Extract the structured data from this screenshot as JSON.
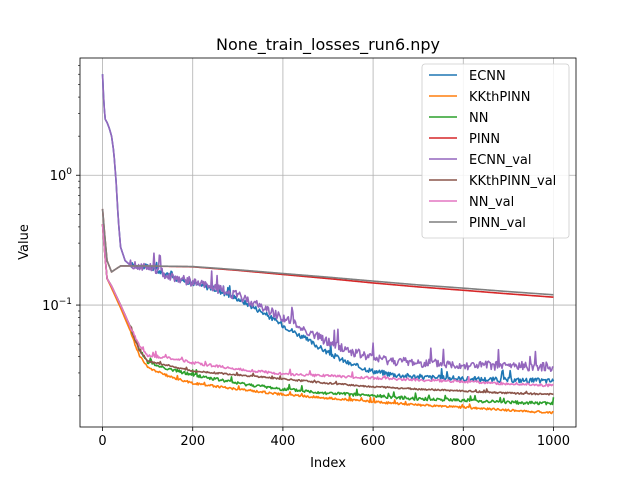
{
  "chart_data": {
    "type": "line",
    "title": "None_train_losses_run6.npy",
    "xlabel": "Index",
    "ylabel": "Value",
    "xlim": [
      -50,
      1050
    ],
    "ylim": [
      0.0115,
      8.0
    ],
    "yscale": "log",
    "grid": true,
    "legend_position": "top-right",
    "x_ticks": [
      0,
      200,
      400,
      600,
      800,
      1000
    ],
    "y_ticks": [
      {
        "value": 0.1,
        "label": "10",
        "exp": "−1"
      },
      {
        "value": 1.0,
        "label": "10",
        "exp": "0"
      }
    ],
    "series": [
      {
        "name": "ECNN",
        "color": "#1f77b4",
        "noise": 0.02,
        "points": [
          [
            0,
            6.0
          ],
          [
            3,
            3.5
          ],
          [
            6,
            2.7
          ],
          [
            10,
            2.55
          ],
          [
            15,
            2.3
          ],
          [
            20,
            2.0
          ],
          [
            25,
            1.5
          ],
          [
            30,
            0.9
          ],
          [
            35,
            0.45
          ],
          [
            40,
            0.28
          ],
          [
            50,
            0.22
          ],
          [
            60,
            0.205
          ],
          [
            80,
            0.2
          ],
          [
            100,
            0.197
          ],
          [
            120,
            0.185
          ],
          [
            150,
            0.165
          ],
          [
            200,
            0.148
          ],
          [
            250,
            0.132
          ],
          [
            300,
            0.112
          ],
          [
            350,
            0.09
          ],
          [
            400,
            0.07
          ],
          [
            450,
            0.055
          ],
          [
            500,
            0.043
          ],
          [
            550,
            0.035
          ],
          [
            600,
            0.031
          ],
          [
            650,
            0.029
          ],
          [
            700,
            0.028
          ],
          [
            800,
            0.027
          ],
          [
            900,
            0.0265
          ],
          [
            1000,
            0.026
          ]
        ]
      },
      {
        "name": "KKthPINN",
        "color": "#ff7f0e",
        "noise": 0.008,
        "points": [
          [
            0,
            0.42
          ],
          [
            5,
            0.25
          ],
          [
            10,
            0.16
          ],
          [
            20,
            0.135
          ],
          [
            40,
            0.095
          ],
          [
            60,
            0.065
          ],
          [
            80,
            0.042
          ],
          [
            100,
            0.033
          ],
          [
            150,
            0.028
          ],
          [
            200,
            0.025
          ],
          [
            300,
            0.0225
          ],
          [
            400,
            0.0205
          ],
          [
            500,
            0.0192
          ],
          [
            600,
            0.018
          ],
          [
            700,
            0.017
          ],
          [
            800,
            0.0163
          ],
          [
            900,
            0.0155
          ],
          [
            1000,
            0.0148
          ]
        ]
      },
      {
        "name": "NN",
        "color": "#2ca02c",
        "noise": 0.012,
        "points": [
          [
            0,
            0.42
          ],
          [
            5,
            0.25
          ],
          [
            10,
            0.16
          ],
          [
            20,
            0.14
          ],
          [
            40,
            0.1
          ],
          [
            60,
            0.07
          ],
          [
            80,
            0.047
          ],
          [
            100,
            0.036
          ],
          [
            150,
            0.032
          ],
          [
            200,
            0.029
          ],
          [
            300,
            0.025
          ],
          [
            400,
            0.0225
          ],
          [
            500,
            0.021
          ],
          [
            600,
            0.02
          ],
          [
            700,
            0.019
          ],
          [
            800,
            0.0185
          ],
          [
            900,
            0.0178
          ],
          [
            1000,
            0.0175
          ]
        ]
      },
      {
        "name": "PINN",
        "color": "#d62728",
        "noise": 0.0,
        "points": [
          [
            0,
            0.55
          ],
          [
            5,
            0.34
          ],
          [
            10,
            0.22
          ],
          [
            20,
            0.18
          ],
          [
            30,
            0.19
          ],
          [
            40,
            0.2
          ],
          [
            100,
            0.2
          ],
          [
            200,
            0.197
          ],
          [
            300,
            0.185
          ],
          [
            400,
            0.172
          ],
          [
            500,
            0.16
          ],
          [
            600,
            0.148
          ],
          [
            700,
            0.138
          ],
          [
            800,
            0.13
          ],
          [
            900,
            0.122
          ],
          [
            1000,
            0.115
          ]
        ]
      },
      {
        "name": "ECNN_val",
        "color": "#9467bd",
        "noise": 0.035,
        "points": [
          [
            0,
            6.0
          ],
          [
            3,
            3.5
          ],
          [
            6,
            2.7
          ],
          [
            10,
            2.55
          ],
          [
            15,
            2.3
          ],
          [
            20,
            2.0
          ],
          [
            25,
            1.5
          ],
          [
            30,
            0.9
          ],
          [
            35,
            0.45
          ],
          [
            40,
            0.28
          ],
          [
            50,
            0.22
          ],
          [
            60,
            0.205
          ],
          [
            80,
            0.2
          ],
          [
            100,
            0.197
          ],
          [
            120,
            0.185
          ],
          [
            150,
            0.167
          ],
          [
            200,
            0.15
          ],
          [
            250,
            0.135
          ],
          [
            300,
            0.118
          ],
          [
            350,
            0.098
          ],
          [
            400,
            0.08
          ],
          [
            450,
            0.064
          ],
          [
            500,
            0.052
          ],
          [
            550,
            0.044
          ],
          [
            600,
            0.039
          ],
          [
            650,
            0.037
          ],
          [
            700,
            0.036
          ],
          [
            800,
            0.0345
          ],
          [
            900,
            0.034
          ],
          [
            1000,
            0.0335
          ]
        ]
      },
      {
        "name": "KKthPINN_val",
        "color": "#8c564b",
        "noise": 0.006,
        "points": [
          [
            0,
            0.42
          ],
          [
            5,
            0.25
          ],
          [
            10,
            0.16
          ],
          [
            20,
            0.14
          ],
          [
            40,
            0.1
          ],
          [
            60,
            0.07
          ],
          [
            80,
            0.046
          ],
          [
            100,
            0.037
          ],
          [
            150,
            0.034
          ],
          [
            200,
            0.031
          ],
          [
            300,
            0.029
          ],
          [
            400,
            0.027
          ],
          [
            500,
            0.025
          ],
          [
            600,
            0.0235
          ],
          [
            700,
            0.0225
          ],
          [
            800,
            0.0218
          ],
          [
            900,
            0.021
          ],
          [
            1000,
            0.0205
          ]
        ]
      },
      {
        "name": "NN_val",
        "color": "#e377c2",
        "noise": 0.01,
        "points": [
          [
            0,
            0.42
          ],
          [
            5,
            0.25
          ],
          [
            10,
            0.16
          ],
          [
            20,
            0.14
          ],
          [
            40,
            0.1
          ],
          [
            60,
            0.07
          ],
          [
            80,
            0.05
          ],
          [
            100,
            0.041
          ],
          [
            150,
            0.039
          ],
          [
            200,
            0.036
          ],
          [
            300,
            0.032
          ],
          [
            400,
            0.0295
          ],
          [
            500,
            0.0285
          ],
          [
            600,
            0.0275
          ],
          [
            700,
            0.0265
          ],
          [
            800,
            0.0258
          ],
          [
            900,
            0.0248
          ],
          [
            1000,
            0.024
          ]
        ]
      },
      {
        "name": "PINN_val",
        "color": "#7f7f7f",
        "noise": 0.0,
        "points": [
          [
            0,
            0.55
          ],
          [
            5,
            0.34
          ],
          [
            10,
            0.22
          ],
          [
            20,
            0.18
          ],
          [
            30,
            0.19
          ],
          [
            40,
            0.2
          ],
          [
            100,
            0.2
          ],
          [
            200,
            0.198
          ],
          [
            300,
            0.187
          ],
          [
            400,
            0.175
          ],
          [
            500,
            0.164
          ],
          [
            600,
            0.153
          ],
          [
            700,
            0.143
          ],
          [
            800,
            0.135
          ],
          [
            900,
            0.127
          ],
          [
            1000,
            0.12
          ]
        ]
      }
    ]
  }
}
